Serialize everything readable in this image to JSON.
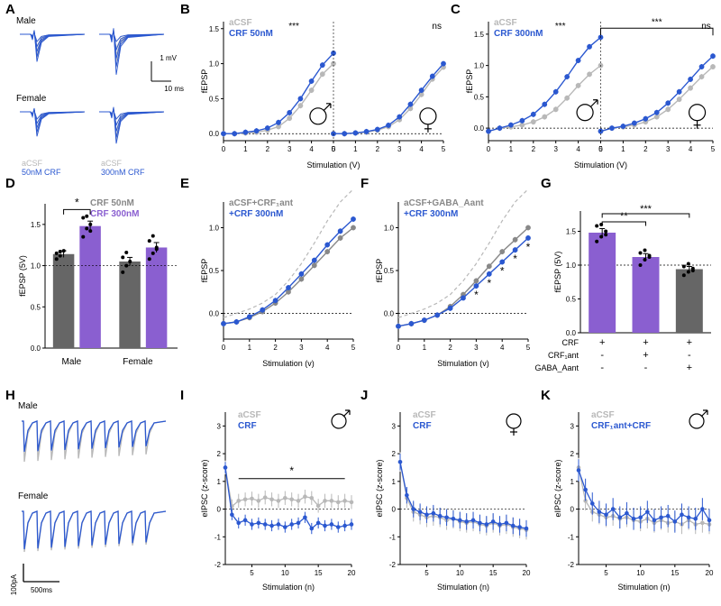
{
  "colors": {
    "blue": "#2b58d0",
    "gray": "#b8b8b8",
    "darkgray": "#666666",
    "purple": "#8a5fd0",
    "black": "#000000",
    "white": "#ffffff"
  },
  "panelA": {
    "label": "A",
    "male_label": "Male",
    "female_label": "Female",
    "legend_acsf": "aCSF",
    "legend_50": "50nM CRF",
    "legend_300": "300nM CRF",
    "scale_y": "1 mV",
    "scale_x": "10 ms",
    "traces": {
      "male_50": {
        "color_a": "#b8b8b8",
        "color_b": "#2b58d0"
      },
      "male_300": {
        "color_a": "#b8b8b8",
        "color_b": "#2b58d0"
      },
      "female_50": {
        "color_a": "#b8b8b8",
        "color_b": "#2b58d0"
      },
      "female_300": {
        "color_a": "#b8b8b8",
        "color_b": "#2b58d0"
      }
    }
  },
  "panelB": {
    "label": "B",
    "type": "line",
    "xlabel": "Stimulation (V)",
    "ylabel": "fEPSP",
    "xlim": [
      0,
      5
    ],
    "ylim": [
      -0.1,
      1.6
    ],
    "xtick_step": 1,
    "ytick_step": 0.5,
    "legend_acsf": "aCSF",
    "legend_crf": "CRF 50nM",
    "sig_male": "***",
    "sig_female": "ns",
    "x": [
      0,
      0.5,
      1,
      1.5,
      2,
      2.5,
      3,
      3.5,
      4,
      4.5,
      5
    ],
    "male_acsf": [
      0,
      0,
      0.01,
      0.02,
      0.05,
      0.1,
      0.22,
      0.4,
      0.62,
      0.85,
      1.0
    ],
    "male_crf": [
      0,
      0,
      0.02,
      0.04,
      0.08,
      0.16,
      0.3,
      0.5,
      0.75,
      0.98,
      1.15
    ],
    "female_acsf": [
      0,
      0,
      0.01,
      0.02,
      0.05,
      0.1,
      0.2,
      0.36,
      0.56,
      0.78,
      0.95
    ],
    "female_crf": [
      0,
      0,
      0.01,
      0.03,
      0.06,
      0.12,
      0.24,
      0.42,
      0.62,
      0.82,
      1.0
    ],
    "colors": {
      "acsf": "#b8b8b8",
      "crf": "#2b58d0"
    }
  },
  "panelC": {
    "label": "C",
    "type": "line",
    "xlabel": "Stimulation (V)",
    "ylabel": "fEPSP",
    "xlim": [
      0,
      5
    ],
    "ylim": [
      -0.2,
      1.7
    ],
    "xtick_step": 1,
    "ytick_step": 0.5,
    "legend_acsf": "aCSF",
    "legend_crf": "CRF 300nM",
    "sig_male": "***",
    "sig_female": "ns",
    "sig_between": "***",
    "x": [
      0,
      0.5,
      1,
      1.5,
      2,
      2.5,
      3,
      3.5,
      4,
      4.5,
      5
    ],
    "male_acsf": [
      -0.05,
      0,
      0.02,
      0.05,
      0.1,
      0.18,
      0.3,
      0.48,
      0.68,
      0.86,
      1.0
    ],
    "male_crf": [
      -0.05,
      0,
      0.05,
      0.12,
      0.22,
      0.38,
      0.58,
      0.82,
      1.08,
      1.3,
      1.45
    ],
    "female_acsf": [
      -0.05,
      0,
      0.02,
      0.05,
      0.1,
      0.18,
      0.3,
      0.46,
      0.64,
      0.82,
      0.98
    ],
    "female_crf": [
      -0.05,
      0,
      0.03,
      0.08,
      0.15,
      0.25,
      0.4,
      0.58,
      0.78,
      0.98,
      1.15
    ],
    "colors": {
      "acsf": "#b8b8b8",
      "crf": "#2b58d0"
    }
  },
  "panelD": {
    "label": "D",
    "type": "bar",
    "ylabel": "fEPSP (5V)",
    "ylim": [
      0,
      1.75
    ],
    "ytick_step": 0.5,
    "legend_50": "CRF 50nM",
    "legend_300": "CRF 300nM",
    "sig": "*",
    "groups": [
      "Male",
      "Female"
    ],
    "bars": [
      {
        "group": "Male",
        "cond": "50",
        "value": 1.14,
        "err": 0.04,
        "points": [
          1.08,
          1.12,
          1.18,
          1.15,
          1.17
        ],
        "color": "#666666"
      },
      {
        "group": "Male",
        "cond": "300",
        "value": 1.48,
        "err": 0.06,
        "points": [
          1.35,
          1.45,
          1.5,
          1.58,
          1.6,
          1.42
        ],
        "color": "#8a5fd0"
      },
      {
        "group": "Female",
        "cond": "50",
        "value": 1.05,
        "err": 0.05,
        "points": [
          0.92,
          1.0,
          1.05,
          1.1,
          1.16
        ],
        "color": "#666666"
      },
      {
        "group": "Female",
        "cond": "300",
        "value": 1.22,
        "err": 0.06,
        "points": [
          1.08,
          1.15,
          1.22,
          1.3,
          1.36,
          1.2
        ],
        "color": "#8a5fd0"
      }
    ]
  },
  "panelE": {
    "label": "E",
    "type": "line",
    "xlabel": "Stimulation (v)",
    "ylabel": "fEPSP",
    "xlim": [
      0,
      5
    ],
    "ylim": [
      -0.3,
      1.3
    ],
    "xtick_step": 1,
    "ytick_step": 0.5,
    "legend_a": "aCSF+CRF₁ant",
    "legend_b": "+CRF 300nM",
    "x": [
      0,
      0.5,
      1,
      1.5,
      2,
      2.5,
      3,
      3.5,
      4,
      4.5,
      5
    ],
    "acsf": [
      -0.12,
      -0.1,
      -0.05,
      0.02,
      0.12,
      0.25,
      0.4,
      0.56,
      0.72,
      0.88,
      1.0
    ],
    "crf": [
      -0.12,
      -0.1,
      -0.04,
      0.04,
      0.15,
      0.3,
      0.46,
      0.62,
      0.8,
      0.96,
      1.1
    ],
    "ref_dashed": [
      -0.05,
      0,
      0.05,
      0.12,
      0.22,
      0.38,
      0.58,
      0.82,
      1.08,
      1.3,
      1.45
    ],
    "colors": {
      "acsf": "#888888",
      "crf": "#2b58d0",
      "ref": "#b8b8b8"
    }
  },
  "panelF": {
    "label": "F",
    "type": "line",
    "xlabel": "Stimulation (v)",
    "ylabel": "fEPSP",
    "xlim": [
      0,
      5
    ],
    "ylim": [
      -0.3,
      1.3
    ],
    "xtick_step": 1,
    "ytick_step": 0.5,
    "legend_a": "aCSF+GABA_Aant",
    "legend_b": "+CRF 300nM",
    "sig_stars_x": [
      3,
      3.5,
      4,
      4.5,
      5
    ],
    "x": [
      0,
      0.5,
      1,
      1.5,
      2,
      2.5,
      3,
      3.5,
      4,
      4.5,
      5
    ],
    "acsf": [
      -0.15,
      -0.12,
      -0.08,
      -0.02,
      0.08,
      0.22,
      0.38,
      0.55,
      0.72,
      0.86,
      1.0
    ],
    "crf": [
      -0.15,
      -0.12,
      -0.08,
      -0.02,
      0.06,
      0.18,
      0.32,
      0.46,
      0.6,
      0.74,
      0.88
    ],
    "ref_dashed": [
      -0.05,
      0,
      0.05,
      0.12,
      0.22,
      0.38,
      0.58,
      0.82,
      1.08,
      1.3,
      1.45
    ],
    "colors": {
      "acsf": "#888888",
      "crf": "#2b58d0",
      "ref": "#b8b8b8"
    }
  },
  "panelG": {
    "label": "G",
    "type": "bar",
    "ylabel": "fEPSP (5V)",
    "ylim": [
      0,
      1.8
    ],
    "ytick_step": 0.5,
    "sig1": "**",
    "sig2": "***",
    "row_labels": [
      "CRF",
      "CRF₁ant",
      "GABA_Aant"
    ],
    "bars": [
      {
        "value": 1.48,
        "err": 0.06,
        "points": [
          1.35,
          1.42,
          1.5,
          1.58,
          1.6,
          1.45
        ],
        "color": "#8a5fd0",
        "below": [
          "+",
          "-",
          "-"
        ]
      },
      {
        "value": 1.12,
        "err": 0.05,
        "points": [
          1.0,
          1.08,
          1.12,
          1.18,
          1.22,
          1.14
        ],
        "color": "#8a5fd0",
        "below": [
          "+",
          "+",
          "-"
        ]
      },
      {
        "value": 0.94,
        "err": 0.04,
        "points": [
          0.85,
          0.9,
          0.95,
          0.98,
          1.02,
          0.92
        ],
        "color": "#666666",
        "below": [
          "+",
          "-",
          "+"
        ]
      }
    ]
  },
  "panelH": {
    "label": "H",
    "male_label": "Male",
    "female_label": "Female",
    "scale_y": "100pA",
    "scale_x": "500ms",
    "colors": {
      "acsf": "#b8b8b8",
      "crf": "#2b58d0"
    }
  },
  "panelI": {
    "label": "I",
    "type": "line",
    "xlabel": "Stimulation (n)",
    "ylabel": "eIPSC (z-score)",
    "xlim": [
      1,
      20
    ],
    "ylim": [
      -2,
      3.5
    ],
    "xtick_step": 5,
    "ytick_step": 1,
    "legend_a": "aCSF",
    "legend_b": "CRF",
    "sig": "*",
    "x": [
      1,
      2,
      3,
      4,
      5,
      6,
      7,
      8,
      9,
      10,
      11,
      12,
      13,
      14,
      15,
      16,
      17,
      18,
      19,
      20
    ],
    "acsf": [
      1.5,
      0.1,
      0.3,
      0.35,
      0.38,
      0.3,
      0.42,
      0.35,
      0.3,
      0.4,
      0.35,
      0.3,
      0.45,
      0.4,
      0.12,
      0.3,
      0.3,
      0.25,
      0.3,
      0.25
    ],
    "crf": [
      1.5,
      -0.2,
      -0.5,
      -0.4,
      -0.55,
      -0.5,
      -0.55,
      -0.6,
      -0.55,
      -0.65,
      -0.55,
      -0.5,
      -0.3,
      -0.7,
      -0.5,
      -0.6,
      -0.55,
      -0.65,
      -0.6,
      -0.55
    ],
    "err_a": 0.25,
    "err_b": 0.2,
    "colors": {
      "acsf": "#b8b8b8",
      "crf": "#2b58d0"
    }
  },
  "panelJ": {
    "label": "J",
    "type": "line",
    "xlabel": "Stimulation (n)",
    "ylabel": "eIPSC (z-score)",
    "xlim": [
      1,
      20
    ],
    "ylim": [
      -2,
      3.5
    ],
    "xtick_step": 5,
    "ytick_step": 1,
    "legend_a": "aCSF",
    "legend_b": "CRF",
    "x": [
      1,
      2,
      3,
      4,
      5,
      6,
      7,
      8,
      9,
      10,
      11,
      12,
      13,
      14,
      15,
      16,
      17,
      18,
      19,
      20
    ],
    "acsf": [
      1.7,
      0.4,
      -0.1,
      -0.2,
      -0.3,
      -0.25,
      -0.3,
      -0.4,
      -0.35,
      -0.45,
      -0.5,
      -0.45,
      -0.55,
      -0.6,
      -0.5,
      -0.6,
      -0.55,
      -0.65,
      -0.7,
      -0.75
    ],
    "crf": [
      1.7,
      0.5,
      0.0,
      -0.1,
      -0.2,
      -0.15,
      -0.25,
      -0.3,
      -0.35,
      -0.4,
      -0.45,
      -0.4,
      -0.5,
      -0.55,
      -0.45,
      -0.55,
      -0.5,
      -0.6,
      -0.65,
      -0.7
    ],
    "err_a": 0.35,
    "err_b": 0.3,
    "colors": {
      "acsf": "#b8b8b8",
      "crf": "#2b58d0"
    }
  },
  "panelK": {
    "label": "K",
    "type": "line",
    "xlabel": "Stimulation (n)",
    "ylabel": "eIPSC (z-score)",
    "xlim": [
      1,
      20
    ],
    "ylim": [
      -2,
      3.5
    ],
    "xtick_step": 5,
    "ytick_step": 1,
    "legend_a": "aCSF",
    "legend_b": "CRF₁ant+CRF",
    "x": [
      1,
      2,
      3,
      4,
      5,
      6,
      7,
      8,
      9,
      10,
      11,
      12,
      13,
      14,
      15,
      16,
      17,
      18,
      19,
      20
    ],
    "acsf": [
      1.5,
      0.3,
      -0.1,
      -0.2,
      -0.3,
      -0.25,
      -0.35,
      -0.3,
      -0.4,
      -0.45,
      -0.35,
      -0.5,
      -0.4,
      -0.5,
      -0.45,
      -0.55,
      -0.4,
      -0.55,
      -0.5,
      -0.55
    ],
    "crf": [
      1.4,
      0.7,
      0.2,
      -0.1,
      -0.2,
      -0.0,
      -0.3,
      -0.15,
      -0.35,
      -0.3,
      -0.1,
      -0.4,
      -0.3,
      -0.25,
      -0.45,
      -0.2,
      -0.3,
      -0.35,
      0.0,
      -0.4
    ],
    "err_a": 0.35,
    "err_b": 0.4,
    "colors": {
      "acsf": "#b8b8b8",
      "crf": "#2b58d0"
    }
  }
}
